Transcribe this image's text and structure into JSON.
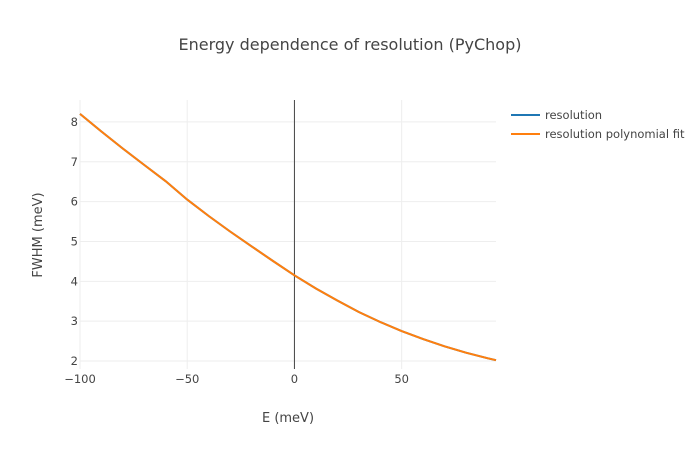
{
  "chart_data": {
    "type": "line",
    "title": "Energy dependence of resolution (PyChop)",
    "xlabel": "E (meV)",
    "ylabel": "FWHM (meV)",
    "xlim": [
      -100,
      94
    ],
    "ylim": [
      1.8,
      8.55
    ],
    "xticks": [
      -100,
      -50,
      0,
      50
    ],
    "xtick_labels": [
      "−100",
      "−50",
      "0",
      "50"
    ],
    "yticks": [
      2,
      3,
      4,
      5,
      6,
      7,
      8
    ],
    "ytick_labels": [
      "2",
      "3",
      "4",
      "5",
      "6",
      "7",
      "8"
    ],
    "grid": true,
    "zero_line_x": 0,
    "legend": "top-right",
    "x": [
      -100,
      -90,
      -80,
      -70,
      -60,
      -50,
      -40,
      -30,
      -20,
      -10,
      0,
      10,
      20,
      30,
      40,
      50,
      60,
      70,
      80,
      90,
      94
    ],
    "series": [
      {
        "name": "resolution",
        "color": "#1f77b4",
        "values": [
          8.2,
          7.76,
          7.33,
          6.92,
          6.51,
          6.05,
          5.64,
          5.25,
          4.88,
          4.51,
          4.15,
          3.82,
          3.52,
          3.23,
          2.98,
          2.75,
          2.55,
          2.37,
          2.21,
          2.07,
          2.02
        ]
      },
      {
        "name": "resolution polynomial fit",
        "color": "#ff7f0e",
        "values": [
          8.2,
          7.76,
          7.33,
          6.92,
          6.51,
          6.05,
          5.64,
          5.25,
          4.88,
          4.51,
          4.15,
          3.82,
          3.52,
          3.23,
          2.98,
          2.75,
          2.55,
          2.37,
          2.21,
          2.07,
          2.02
        ]
      }
    ]
  }
}
